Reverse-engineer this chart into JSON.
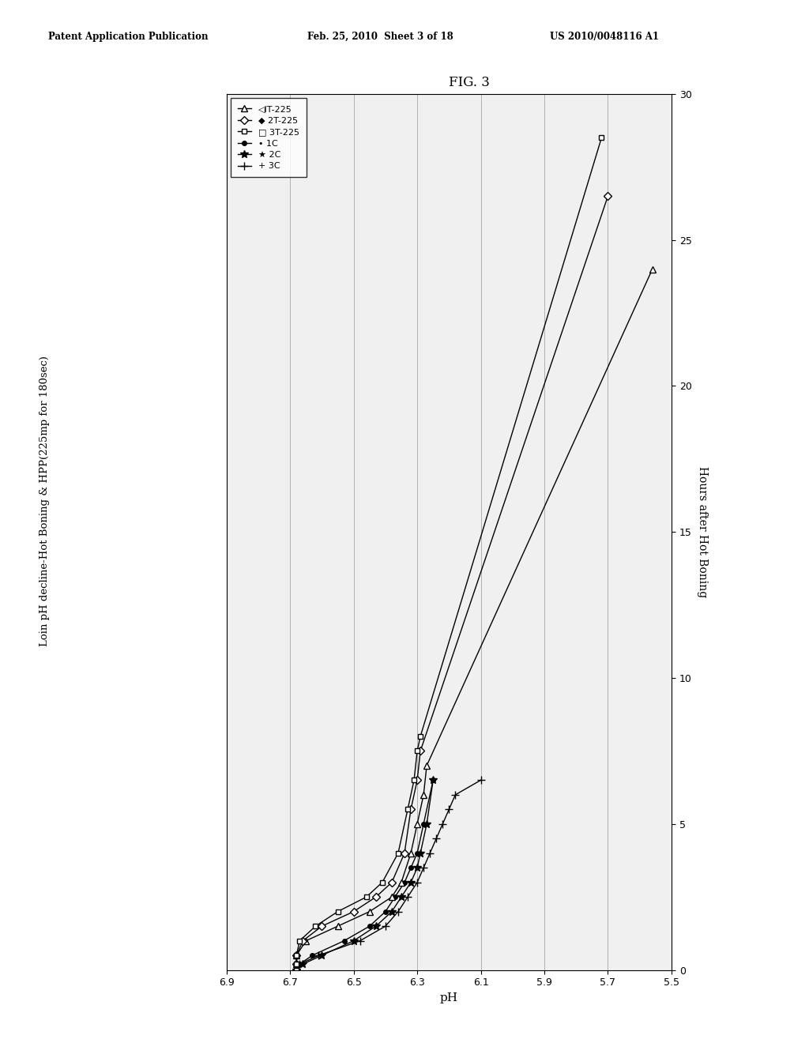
{
  "header_left": "Patent Application Publication",
  "header_mid": "Feb. 25, 2010  Sheet 3 of 18",
  "header_right": "US 2010/0048116 A1",
  "fig_label": "FIG. 3",
  "y_label": "pH",
  "x_label": "Hours after Hot Boning",
  "title_rotated": "Loin pH decline-Hot Boning & HPP(225mp for 180sec)",
  "xlim": [
    0,
    30
  ],
  "ylim": [
    5.5,
    6.9
  ],
  "yticks": [
    5.5,
    5.7,
    5.9,
    6.1,
    6.3,
    6.5,
    6.7,
    6.9
  ],
  "xticks": [
    0,
    5,
    10,
    15,
    20,
    25,
    30
  ],
  "series": {
    "1C": {
      "hours": [
        0,
        0.2,
        0.5,
        1.0,
        1.5,
        2.0,
        2.5,
        3.0,
        3.5,
        4.0,
        5.0,
        6.5
      ],
      "ph": [
        6.68,
        6.67,
        6.63,
        6.53,
        6.45,
        6.4,
        6.37,
        6.34,
        6.32,
        6.3,
        6.28,
        6.25
      ],
      "marker": "o",
      "mfc": "black"
    },
    "2C": {
      "hours": [
        0,
        0.2,
        0.5,
        1.0,
        1.5,
        2.0,
        2.5,
        3.0,
        3.5,
        4.0,
        5.0,
        6.5
      ],
      "ph": [
        6.68,
        6.66,
        6.6,
        6.5,
        6.43,
        6.38,
        6.35,
        6.32,
        6.3,
        6.29,
        6.27,
        6.25
      ],
      "marker": "*",
      "mfc": "black"
    },
    "3C": {
      "hours": [
        0,
        0.2,
        0.5,
        1.0,
        1.5,
        2.0,
        2.5,
        3.0,
        3.5,
        4.0,
        4.5,
        5.0,
        5.5,
        6.0,
        6.5
      ],
      "ph": [
        6.68,
        6.67,
        6.61,
        6.48,
        6.4,
        6.36,
        6.33,
        6.3,
        6.28,
        6.26,
        6.24,
        6.22,
        6.2,
        6.18,
        6.1
      ],
      "marker": "+",
      "mfc": "black"
    },
    "1T-225": {
      "hours": [
        0,
        0.2,
        0.5,
        1.0,
        1.5,
        2.0,
        2.5,
        3.0,
        4.0,
        5.0,
        6.0,
        7.0,
        24.0
      ],
      "ph": [
        6.68,
        6.68,
        6.68,
        6.65,
        6.55,
        6.45,
        6.38,
        6.35,
        6.32,
        6.3,
        6.28,
        6.27,
        5.56
      ],
      "marker": "^",
      "mfc": "white"
    },
    "2T-225": {
      "hours": [
        0,
        0.2,
        0.5,
        1.0,
        1.5,
        2.0,
        2.5,
        3.0,
        4.0,
        5.5,
        6.5,
        7.5,
        26.5
      ],
      "ph": [
        6.68,
        6.68,
        6.68,
        6.66,
        6.6,
        6.5,
        6.43,
        6.38,
        6.34,
        6.32,
        6.3,
        6.29,
        5.7
      ],
      "marker": "D",
      "mfc": "white"
    },
    "3T-225": {
      "hours": [
        0,
        0.2,
        0.5,
        1.0,
        1.5,
        2.0,
        2.5,
        3.0,
        4.0,
        5.5,
        6.5,
        7.5,
        8.0,
        28.5
      ],
      "ph": [
        6.68,
        6.68,
        6.68,
        6.67,
        6.62,
        6.55,
        6.46,
        6.41,
        6.36,
        6.33,
        6.31,
        6.3,
        6.29,
        5.72
      ],
      "marker": "s",
      "mfc": "white"
    }
  },
  "background_color": "#f0f0f0",
  "grid_color": "#888888"
}
